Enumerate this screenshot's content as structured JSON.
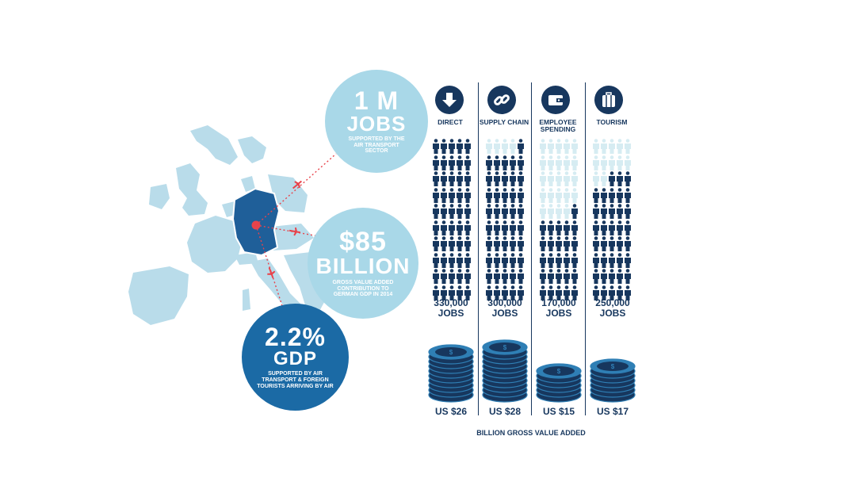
{
  "bubbles": {
    "jobs": {
      "big1": "1 M",
      "big2": "JOBS",
      "text": "SUPPORTED BY THE AIR TRANSPORT SECTOR"
    },
    "gva": {
      "big1": "$85",
      "big2": "BILLION",
      "text": "GROSS VALUE ADDED CONTRIBUTION TO GERMAN GDP IN 2014"
    },
    "gdp": {
      "big1": "2.2%",
      "big2": "GDP",
      "text": "SUPPORTED BY AIR TRANSPORT & FOREIGN TOURISTS ARRIVING BY AIR"
    }
  },
  "columns": [
    {
      "label": "DIRECT",
      "icon": "down-arrow-icon",
      "jobs_value": "330,000",
      "jobs_unit": "JOBS",
      "gva": "US $26",
      "filled_fraction": 1.0
    },
    {
      "label": "SUPPLY CHAIN",
      "icon": "chain-link-icon",
      "jobs_value": "300,000",
      "jobs_unit": "JOBS",
      "gva": "US $28",
      "filled_fraction": 0.91
    },
    {
      "label": "EMPLOYEE SPENDING",
      "icon": "wallet-icon",
      "jobs_value": "170,000",
      "jobs_unit": "JOBS",
      "gva": "US $15",
      "filled_fraction": 0.52
    },
    {
      "label": "TOURISM",
      "icon": "suitcase-icon",
      "jobs_value": "250,000",
      "jobs_unit": "JOBS",
      "gva": "US $17",
      "filled_fraction": 0.76
    }
  ],
  "footer": "BILLION GROSS VALUE ADDED",
  "colors": {
    "dark_navy": "#17375e",
    "light_blue": "#a9d8e8",
    "medium_blue": "#1b6aa5",
    "germany_blue": "#1f5f99",
    "map_blue": "#b9dcea",
    "pale_person": "#d6ecf2",
    "red_accent": "#e8434b"
  }
}
